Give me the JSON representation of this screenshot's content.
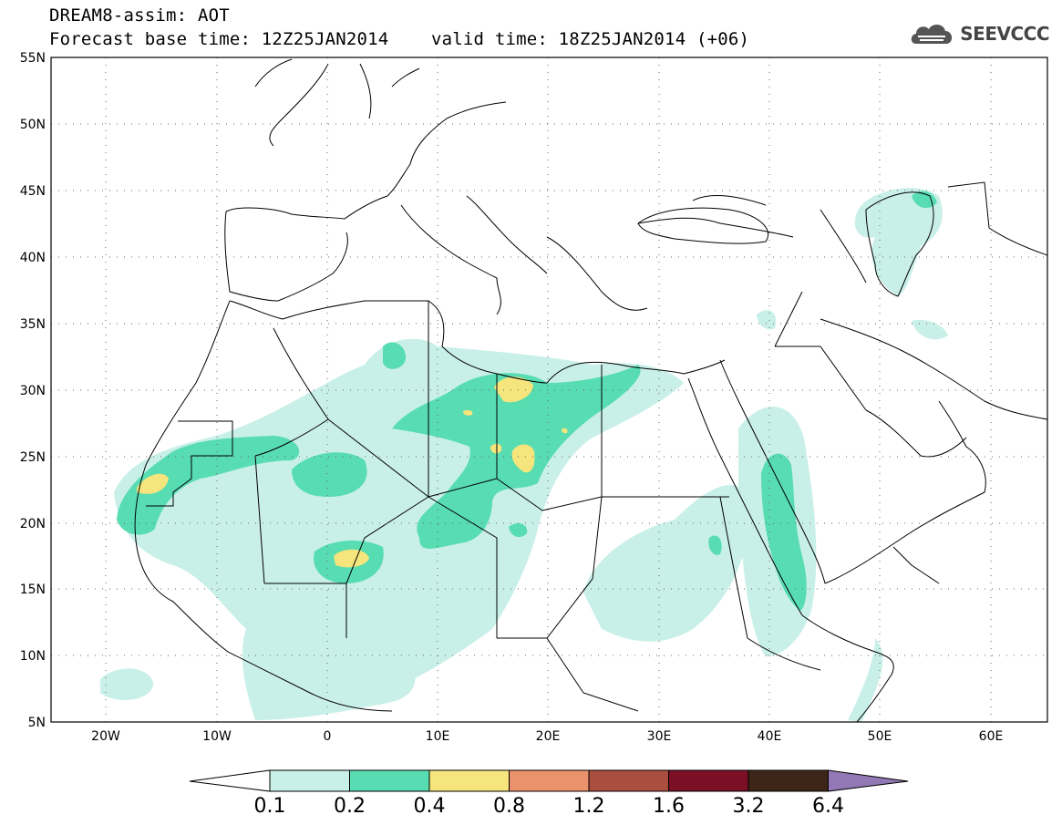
{
  "header": {
    "line1": "DREAM8-assim: AOT",
    "line2": "Forecast base time: 12Z25JAN2014    valid time: 18Z25JAN2014 (+06)"
  },
  "logo": {
    "text": "SEEVCCC",
    "icon": "cloud-icon"
  },
  "map": {
    "lon_range": [
      -25,
      65
    ],
    "lat_range": [
      5,
      55
    ],
    "grid": "dotted",
    "lon_ticks": [
      "20W",
      "10W",
      "0",
      "10E",
      "20E",
      "30E",
      "40E",
      "50E",
      "60E"
    ],
    "lat_ticks": [
      "55N",
      "50N",
      "45N",
      "40N",
      "35N",
      "30N",
      "25N",
      "20N",
      "15N",
      "10N",
      "5N"
    ]
  },
  "colorbar": {
    "colors": [
      "#ffffff",
      "#c9f0e8",
      "#58dcb2",
      "#f5e57c",
      "#e9926c",
      "#aa4f3f",
      "#7a0f26",
      "#3d2617",
      "#9278b4"
    ],
    "labels": [
      "0.1",
      "0.2",
      "0.4",
      "0.8",
      "1.2",
      "1.6",
      "3.2",
      "6.4"
    ]
  }
}
